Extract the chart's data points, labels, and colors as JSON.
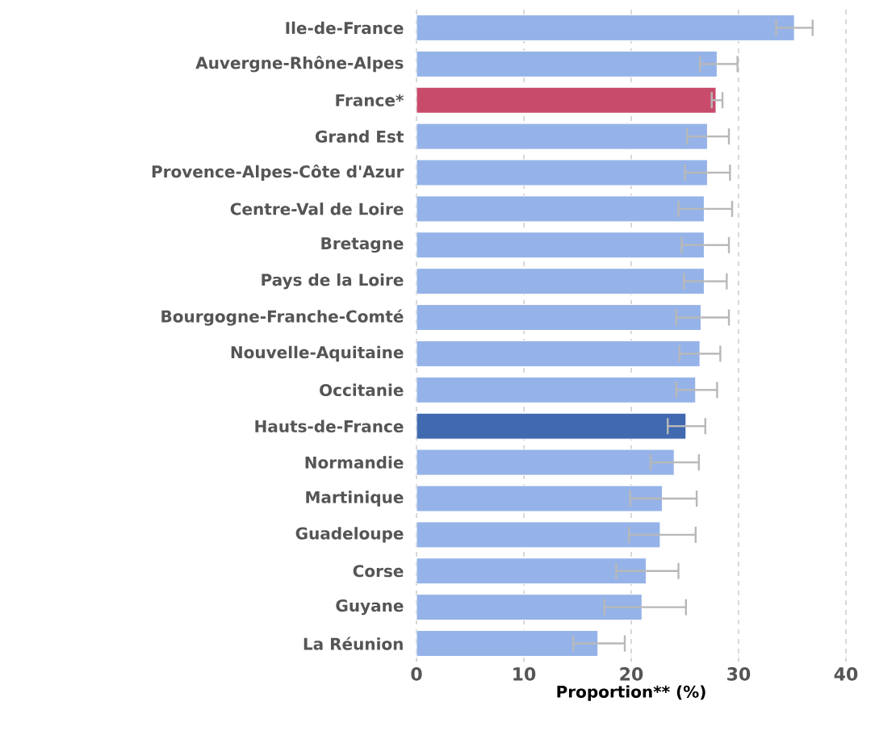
{
  "chart_data": {
    "type": "bar",
    "orientation": "horizontal",
    "xlabel": "Proportion** (%)",
    "categories": [
      "Ile-de-France",
      "Auvergne-Rhône-Alpes",
      "France*",
      "Grand Est",
      "Provence-Alpes-Côte d'Azur",
      "Centre-Val de Loire",
      "Bretagne",
      "Pays de la Loire",
      "Bourgogne-Franche-Comté",
      "Nouvelle-Aquitaine",
      "Occitanie",
      "Hauts-de-France",
      "Normandie",
      "Martinique",
      "Guadeloupe",
      "Corse",
      "Guyane",
      "La Réunion"
    ],
    "values": [
      35.2,
      28.0,
      27.9,
      27.1,
      27.1,
      26.8,
      26.8,
      26.8,
      26.5,
      26.4,
      26.0,
      25.1,
      24.0,
      22.9,
      22.7,
      21.4,
      21.0,
      16.9
    ],
    "errors": [
      [
        33.5,
        36.9
      ],
      [
        26.4,
        29.9
      ],
      [
        27.5,
        28.5
      ],
      [
        25.2,
        29.1
      ],
      [
        25.0,
        29.2
      ],
      [
        24.4,
        29.4
      ],
      [
        24.7,
        29.1
      ],
      [
        24.9,
        28.9
      ],
      [
        24.2,
        29.1
      ],
      [
        24.5,
        28.3
      ],
      [
        24.2,
        28.0
      ],
      [
        23.4,
        26.9
      ],
      [
        21.8,
        26.3
      ],
      [
        19.9,
        26.1
      ],
      [
        19.8,
        26.0
      ],
      [
        18.6,
        24.4
      ],
      [
        17.5,
        25.1
      ],
      [
        14.6,
        19.4
      ]
    ],
    "colors": [
      "#95b3e8",
      "#95b3e8",
      "#c84b6b",
      "#95b3e8",
      "#95b3e8",
      "#95b3e8",
      "#95b3e8",
      "#95b3e8",
      "#95b3e8",
      "#95b3e8",
      "#95b3e8",
      "#4169b0",
      "#95b3e8",
      "#95b3e8",
      "#95b3e8",
      "#95b3e8",
      "#95b3e8",
      "#95b3e8"
    ],
    "xlim": [
      0,
      40
    ],
    "xticks": [
      0,
      10,
      20,
      30,
      40
    ],
    "grid": "x"
  }
}
